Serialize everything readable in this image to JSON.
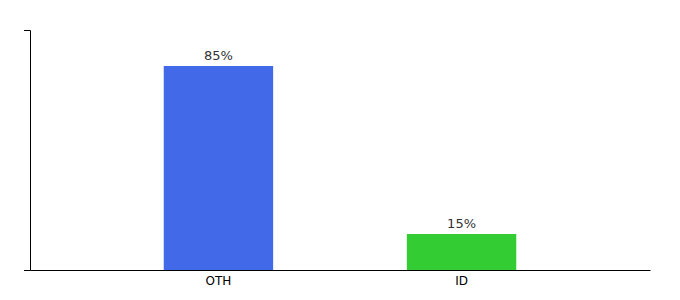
{
  "chart_data": {
    "type": "bar",
    "categories": [
      "OTH",
      "ID"
    ],
    "values": [
      85,
      15
    ],
    "value_labels": [
      "85%",
      "15%"
    ],
    "colors": [
      "#4169e8",
      "#33cc33"
    ],
    "ylim": [
      0,
      100
    ],
    "data_labels": true,
    "tick_labels": "x"
  }
}
